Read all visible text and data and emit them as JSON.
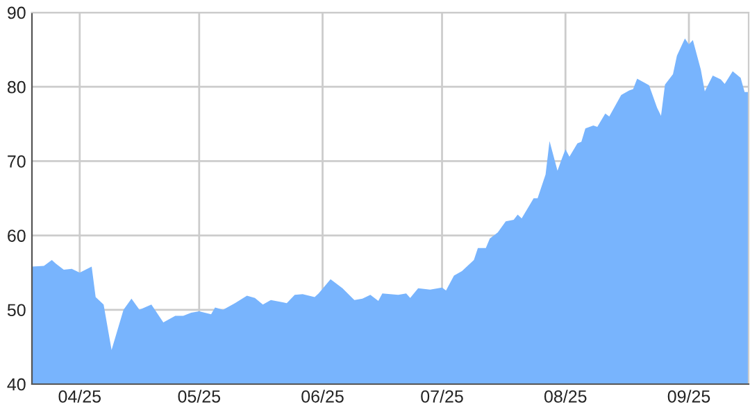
{
  "chart_data": {
    "type": "area",
    "color": "#78b4fd",
    "grid": true,
    "x": [
      "2025-03-20",
      "2025-03-23",
      "2025-03-25",
      "2025-03-26",
      "2025-03-28",
      "2025-03-30",
      "2025-04-01",
      "2025-04-04",
      "2025-04-05",
      "2025-04-07",
      "2025-04-09",
      "2025-04-12",
      "2025-04-14",
      "2025-04-16",
      "2025-04-19",
      "2025-04-22",
      "2025-04-25",
      "2025-04-27",
      "2025-04-29",
      "2025-05-01",
      "2025-05-04",
      "2025-05-05",
      "2025-05-07",
      "2025-05-10",
      "2025-05-13",
      "2025-05-15",
      "2025-05-17",
      "2025-05-19",
      "2025-05-22",
      "2025-05-23",
      "2025-05-25",
      "2025-05-27",
      "2025-05-30",
      "2025-05-31",
      "2025-06-03",
      "2025-06-06",
      "2025-06-09",
      "2025-06-11",
      "2025-06-13",
      "2025-06-15",
      "2025-06-16",
      "2025-06-20",
      "2025-06-22",
      "2025-06-23",
      "2025-06-25",
      "2025-06-28",
      "2025-07-01",
      "2025-07-02",
      "2025-07-04",
      "2025-07-06",
      "2025-07-09",
      "2025-07-10",
      "2025-07-12",
      "2025-07-13",
      "2025-07-15",
      "2025-07-17",
      "2025-07-19",
      "2025-07-20",
      "2025-07-21",
      "2025-07-23",
      "2025-07-24",
      "2025-07-25",
      "2025-07-27",
      "2025-07-28",
      "2025-07-30",
      "2025-07-31",
      "2025-08-01",
      "2025-08-02",
      "2025-08-04",
      "2025-08-05",
      "2025-08-06",
      "2025-08-08",
      "2025-08-09",
      "2025-08-11",
      "2025-08-12",
      "2025-08-15",
      "2025-08-17",
      "2025-08-18",
      "2025-08-19",
      "2025-08-21",
      "2025-08-22",
      "2025-08-24",
      "2025-08-25",
      "2025-08-26",
      "2025-08-28",
      "2025-08-29",
      "2025-08-31",
      "2025-09-01",
      "2025-09-02",
      "2025-09-04",
      "2025-09-05",
      "2025-09-07",
      "2025-09-09",
      "2025-09-10",
      "2025-09-12",
      "2025-09-14",
      "2025-09-15",
      "2025-09-16"
    ],
    "values": [
      55.8,
      55.9,
      56.7,
      56.2,
      55.4,
      55.5,
      55.0,
      55.8,
      51.7,
      50.7,
      44.6,
      50.0,
      51.5,
      50.0,
      50.7,
      48.3,
      49.2,
      49.2,
      49.6,
      49.8,
      49.4,
      50.3,
      50.0,
      50.9,
      51.9,
      51.6,
      50.7,
      51.3,
      51.0,
      50.9,
      52.0,
      52.1,
      51.7,
      52.2,
      54.1,
      52.9,
      51.3,
      51.5,
      52.0,
      51.2,
      52.2,
      52.0,
      52.2,
      51.6,
      52.9,
      52.7,
      53.0,
      52.6,
      54.6,
      55.2,
      56.7,
      58.3,
      58.3,
      59.6,
      60.4,
      61.9,
      62.1,
      62.8,
      62.3,
      64.1,
      65.0,
      65.0,
      68.2,
      72.7,
      68.7,
      70.2,
      71.6,
      70.6,
      72.4,
      72.6,
      74.4,
      74.8,
      74.6,
      76.4,
      76.0,
      78.9,
      79.5,
      79.7,
      81.1,
      80.5,
      80.2,
      77.2,
      76.1,
      80.3,
      81.7,
      84.2,
      86.5,
      85.7,
      86.3,
      82.3,
      79.4,
      81.5,
      81.0,
      80.4,
      82.1,
      81.2,
      79.3,
      79.3
    ],
    "xlim": [
      "2025-03-20",
      "2025-09-16"
    ],
    "xticks": [
      {
        "value": "2025-04-01",
        "label": "04/25"
      },
      {
        "value": "2025-05-01",
        "label": "05/25"
      },
      {
        "value": "2025-06-01",
        "label": "06/25"
      },
      {
        "value": "2025-07-01",
        "label": "07/25"
      },
      {
        "value": "2025-08-01",
        "label": "08/25"
      },
      {
        "value": "2025-09-01",
        "label": "09/25"
      }
    ],
    "ylim": [
      40,
      90
    ],
    "yticks": [
      40,
      50,
      60,
      70,
      80,
      90
    ]
  }
}
